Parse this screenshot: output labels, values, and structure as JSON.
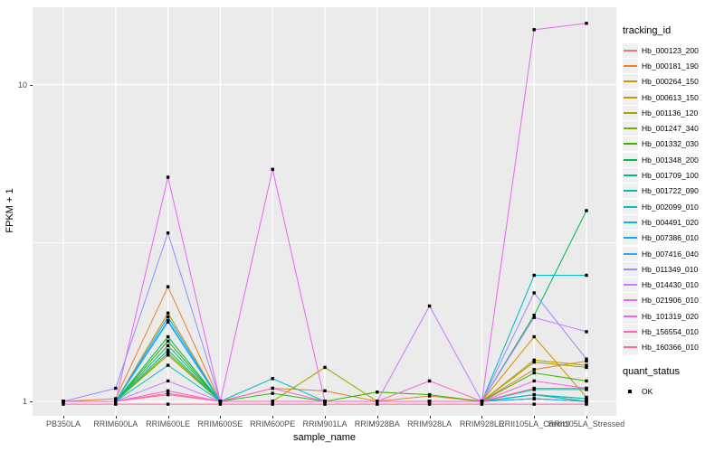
{
  "chart_data": {
    "type": "line",
    "title": "",
    "xlabel": "sample_name",
    "ylabel": "FPKM + 1",
    "y_scale": "log10",
    "ylim": [
      0.93,
      17
    ],
    "grid": "white major+minor on grey panel, log minor at 3.16",
    "legend_position": "right",
    "point_marker": "small black square (quant_status OK)",
    "y_ticks": [
      {
        "label": "1",
        "value": 1
      },
      {
        "label": "10",
        "value": 10
      }
    ],
    "categories": [
      "PB350LA",
      "RRIM600LA",
      "RRIM600LE",
      "RRIM600SE",
      "RRIM600PE",
      "RRIM901LA",
      "RRIM928BA",
      "RRIM928LA",
      "RRIM928LE",
      "RRII105LA_Control",
      "RRII105LA_Stressed"
    ],
    "legend_title": "tracking_id",
    "series": [
      {
        "name": "Hb_000123_200",
        "color": "#F8766D",
        "values": [
          1.0,
          1.0,
          1.05,
          1.0,
          1.0,
          1.0,
          1.0,
          1.0,
          1.0,
          1.02,
          1.0
        ]
      },
      {
        "name": "Hb_000181_190",
        "color": "#EA8331",
        "values": [
          1.0,
          1.02,
          2.3,
          1.0,
          1.1,
          1.08,
          1.0,
          1.04,
          1.0,
          1.26,
          1.34
        ]
      },
      {
        "name": "Hb_000264_150",
        "color": "#D89000",
        "values": [
          1.0,
          1.0,
          1.9,
          1.0,
          1.0,
          1.0,
          1.0,
          1.0,
          1.0,
          1.6,
          1.03
        ]
      },
      {
        "name": "Hb_000613_150",
        "color": "#C09B00",
        "values": [
          1.0,
          1.0,
          1.45,
          1.0,
          1.0,
          1.0,
          1.0,
          1.0,
          1.0,
          1.35,
          1.3
        ]
      },
      {
        "name": "Hb_001136_120",
        "color": "#A3A500",
        "values": [
          1.0,
          1.0,
          1.4,
          1.0,
          1.0,
          1.28,
          1.0,
          1.0,
          1.0,
          1.33,
          1.28
        ]
      },
      {
        "name": "Hb_001247_340",
        "color": "#7CAE00",
        "values": [
          1.0,
          1.0,
          1.42,
          1.0,
          1.0,
          1.0,
          1.0,
          1.0,
          1.0,
          1.05,
          1.02
        ]
      },
      {
        "name": "Hb_001332_030",
        "color": "#39B600",
        "values": [
          1.0,
          1.0,
          1.55,
          1.0,
          1.06,
          1.0,
          1.07,
          1.05,
          1.0,
          1.23,
          1.16
        ]
      },
      {
        "name": "Hb_001348_200",
        "color": "#00BB4E",
        "values": [
          1.0,
          1.0,
          1.6,
          1.0,
          1.0,
          1.0,
          1.0,
          1.0,
          1.0,
          1.87,
          4.0
        ]
      },
      {
        "name": "Hb_001709_100",
        "color": "#00BF7D",
        "values": [
          1.0,
          1.0,
          1.5,
          1.0,
          1.0,
          1.0,
          1.0,
          1.0,
          1.0,
          1.05,
          1.0
        ]
      },
      {
        "name": "Hb_001722_090",
        "color": "#00C1A3",
        "values": [
          1.0,
          1.0,
          1.45,
          1.0,
          1.0,
          1.0,
          1.0,
          1.0,
          1.0,
          1.09,
          1.09
        ]
      },
      {
        "name": "Hb_002099_010",
        "color": "#00BFC4",
        "values": [
          1.0,
          1.0,
          1.3,
          1.0,
          1.18,
          1.0,
          1.0,
          1.0,
          1.0,
          2.5,
          2.5
        ]
      },
      {
        "name": "Hb_004491_020",
        "color": "#00BAE0",
        "values": [
          1.0,
          1.0,
          1.8,
          1.0,
          1.0,
          1.0,
          1.0,
          1.0,
          1.0,
          1.05,
          1.02
        ]
      },
      {
        "name": "Hb_007386_010",
        "color": "#00B0F6",
        "values": [
          1.0,
          1.0,
          1.85,
          1.0,
          1.0,
          1.0,
          1.0,
          1.0,
          1.0,
          1.02,
          1.0
        ]
      },
      {
        "name": "Hb_007416_040",
        "color": "#35A2FF",
        "values": [
          1.0,
          1.0,
          1.78,
          1.0,
          1.0,
          1.0,
          1.0,
          1.0,
          1.0,
          1.02,
          1.0
        ]
      },
      {
        "name": "Hb_011349_010",
        "color": "#9590FF",
        "values": [
          1.0,
          1.1,
          3.4,
          1.0,
          1.0,
          1.0,
          1.0,
          1.0,
          1.0,
          2.2,
          1.36
        ]
      },
      {
        "name": "Hb_014430_010",
        "color": "#C77CFF",
        "values": [
          1.0,
          1.0,
          1.16,
          1.0,
          1.0,
          1.0,
          1.0,
          2.0,
          1.0,
          1.84,
          1.66
        ]
      },
      {
        "name": "Hb_021906_010",
        "color": "#E76BF3",
        "values": [
          1.0,
          1.0,
          5.1,
          1.0,
          5.4,
          1.0,
          1.0,
          1.0,
          1.0,
          14.9,
          15.6
        ]
      },
      {
        "name": "Hb_101319_020",
        "color": "#FA62DB",
        "values": [
          1.0,
          1.0,
          1.08,
          1.0,
          1.1,
          1.0,
          1.0,
          1.16,
          1.0,
          1.16,
          1.1
        ]
      },
      {
        "name": "Hb_156554_010",
        "color": "#FF62BC",
        "values": [
          1.0,
          1.0,
          1.06,
          1.0,
          1.0,
          1.0,
          1.0,
          1.0,
          1.0,
          1.1,
          1.1
        ]
      },
      {
        "name": "Hb_160366_010",
        "color": "#FF6A98",
        "values": [
          0.98,
          0.98,
          0.98,
          0.98,
          0.98,
          0.98,
          0.98,
          0.98,
          0.98,
          0.98,
          0.98
        ]
      }
    ],
    "quant_legend": {
      "title": "quant_status",
      "items": [
        {
          "label": "OK",
          "marker": "black-square"
        }
      ]
    }
  },
  "colors": {
    "panel_bg": "#EBEBEB",
    "grid": "#FFFFFF",
    "tick_text": "#4D4D4D",
    "axis_title_text": "#000000",
    "legend_key_bg": "#F0F0F0",
    "point_marker": "#000000"
  }
}
